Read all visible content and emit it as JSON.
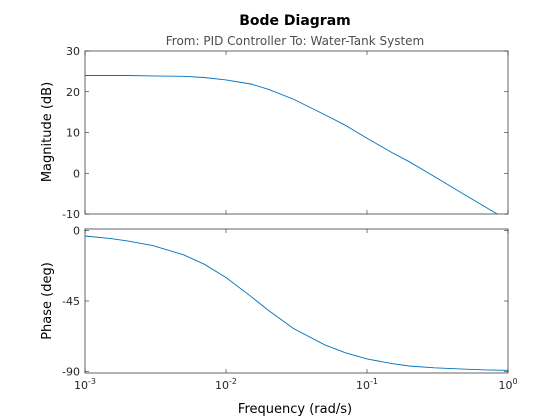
{
  "chart_data": {
    "type": "line",
    "title": "Bode Diagram",
    "subtitle": "From: PID Controller  To: Water-Tank System",
    "xlabel": "Frequency  (rad/s)",
    "x_scale": "log",
    "xlim": [
      0.001,
      1
    ],
    "x_ticks": [
      {
        "value": 0.001,
        "base": "10",
        "exp": "-3"
      },
      {
        "value": 0.01,
        "base": "10",
        "exp": "-2"
      },
      {
        "value": 0.1,
        "base": "10",
        "exp": "-1"
      },
      {
        "value": 1,
        "base": "10",
        "exp": "0"
      }
    ],
    "grid": false,
    "color": "#0072bd",
    "subplots": [
      {
        "ylabel": "Magnitude (dB)",
        "ylim": [
          -10,
          30
        ],
        "y_ticks": [
          "-10",
          "0",
          "10",
          "20",
          "30"
        ],
        "x": [
          0.001,
          0.002,
          0.003,
          0.005,
          0.007,
          0.01,
          0.015,
          0.02,
          0.03,
          0.05,
          0.07,
          0.1,
          0.15,
          0.2,
          0.3,
          0.5,
          0.7,
          0.85
        ],
        "y": [
          24,
          24,
          23.9,
          23.8,
          23.5,
          22.9,
          21.9,
          20.6,
          18.2,
          14.4,
          11.8,
          8.6,
          5.1,
          2.8,
          -0.8,
          -5.4,
          -8.4,
          -10.1
        ]
      },
      {
        "ylabel": "Phase (deg)",
        "ylim": [
          -91,
          1
        ],
        "y_ticks": [
          "-90",
          "-45",
          "0"
        ],
        "x": [
          0.001,
          0.0015,
          0.002,
          0.003,
          0.005,
          0.007,
          0.01,
          0.015,
          0.02,
          0.03,
          0.05,
          0.07,
          0.1,
          0.15,
          0.2,
          0.3,
          0.5,
          0.7,
          1
        ],
        "y": [
          -3.5,
          -5,
          -6.6,
          -9.5,
          -15.5,
          -21.5,
          -30,
          -42,
          -51,
          -62.5,
          -73,
          -78,
          -82,
          -85,
          -86.5,
          -87.7,
          -88.6,
          -89,
          -89.3
        ]
      }
    ]
  }
}
